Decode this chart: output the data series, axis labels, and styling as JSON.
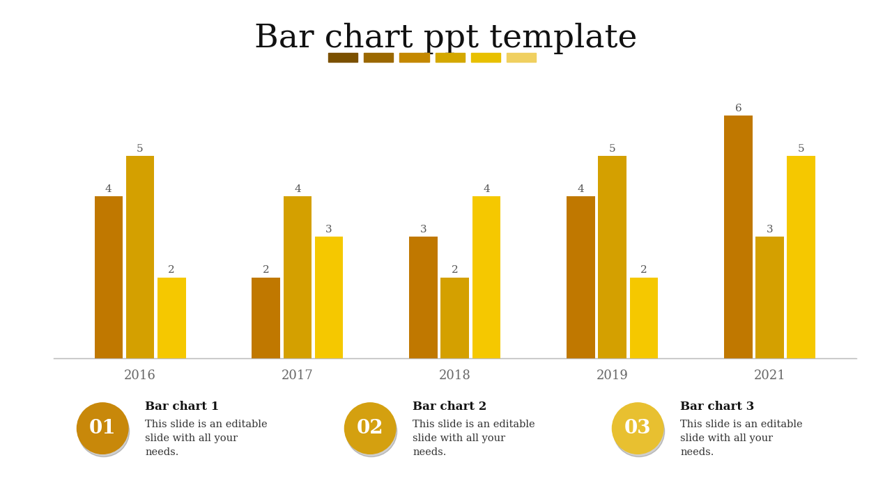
{
  "title": "Bar chart ppt template",
  "background_color": "#ffffff",
  "bar_groups": {
    "2016": [
      4,
      5,
      2
    ],
    "2017": [
      2,
      4,
      3
    ],
    "2018": [
      3,
      2,
      4
    ],
    "2019": [
      4,
      5,
      2
    ],
    "2021": [
      6,
      3,
      5
    ]
  },
  "years": [
    "2016",
    "2017",
    "2018",
    "2019",
    "2021"
  ],
  "bar_colors": [
    "#c07800",
    "#d4a000",
    "#f5c800"
  ],
  "ylim": [
    0,
    7
  ],
  "dash_colors": [
    "#7B5000",
    "#9B6800",
    "#C48800",
    "#D4A800",
    "#E8C000",
    "#F0D060"
  ],
  "items": [
    {
      "number": "01",
      "title": "Bar chart 1",
      "text": "This slide is an editable\nslide with all your\nneeds.",
      "circle_color": "#c8880a"
    },
    {
      "number": "02",
      "title": "Bar chart 2",
      "text": "This slide is an editable\nslide with all your\nneeds.",
      "circle_color": "#d4a010"
    },
    {
      "number": "03",
      "title": "Bar chart 3",
      "text": "This slide is an editable\nslide with all your\nneeds.",
      "circle_color": "#e8c030"
    }
  ]
}
